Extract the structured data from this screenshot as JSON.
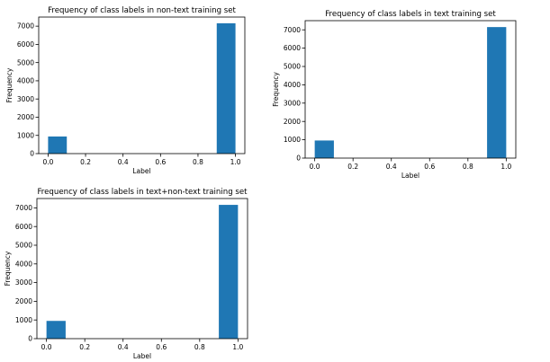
{
  "chart_data": [
    {
      "type": "bar",
      "title": "Frequency of class labels in non-text training set",
      "xlabel": "Label",
      "ylabel": "Frequency",
      "bins": [
        {
          "x0": 0.0,
          "x1": 0.1,
          "value": 940
        },
        {
          "x0": 0.9,
          "x1": 1.0,
          "value": 7160
        }
      ],
      "xlim": [
        -0.05,
        1.05
      ],
      "ylim": [
        0,
        7500
      ],
      "xticks": [
        "0.0",
        "0.2",
        "0.4",
        "0.6",
        "0.8",
        "1.0"
      ],
      "yticks": [
        "0",
        "1000",
        "2000",
        "3000",
        "4000",
        "5000",
        "6000",
        "7000"
      ],
      "grid": false,
      "bar_color": "#1f77b4"
    },
    {
      "type": "bar",
      "title": "Frequency of class labels in text training set",
      "xlabel": "Label",
      "ylabel": "Frequency",
      "bins": [
        {
          "x0": 0.0,
          "x1": 0.1,
          "value": 960
        },
        {
          "x0": 0.9,
          "x1": 1.0,
          "value": 7150
        }
      ],
      "xlim": [
        -0.05,
        1.05
      ],
      "ylim": [
        0,
        7500
      ],
      "xticks": [
        "0.0",
        "0.2",
        "0.4",
        "0.6",
        "0.8",
        "1.0"
      ],
      "yticks": [
        "0",
        "1000",
        "2000",
        "3000",
        "4000",
        "5000",
        "6000",
        "7000"
      ],
      "grid": false,
      "bar_color": "#1f77b4"
    },
    {
      "type": "bar",
      "title": "Frequency of class labels in text+non-text training set",
      "xlabel": "Label",
      "ylabel": "Frequency",
      "bins": [
        {
          "x0": 0.0,
          "x1": 0.1,
          "value": 950
        },
        {
          "x0": 0.9,
          "x1": 1.0,
          "value": 7160
        }
      ],
      "xlim": [
        -0.05,
        1.05
      ],
      "ylim": [
        0,
        7500
      ],
      "xticks": [
        "0.0",
        "0.2",
        "0.4",
        "0.6",
        "0.8",
        "1.0"
      ],
      "yticks": [
        "0",
        "1000",
        "2000",
        "3000",
        "4000",
        "5000",
        "6000",
        "7000"
      ],
      "grid": false,
      "bar_color": "#1f77b4"
    }
  ]
}
